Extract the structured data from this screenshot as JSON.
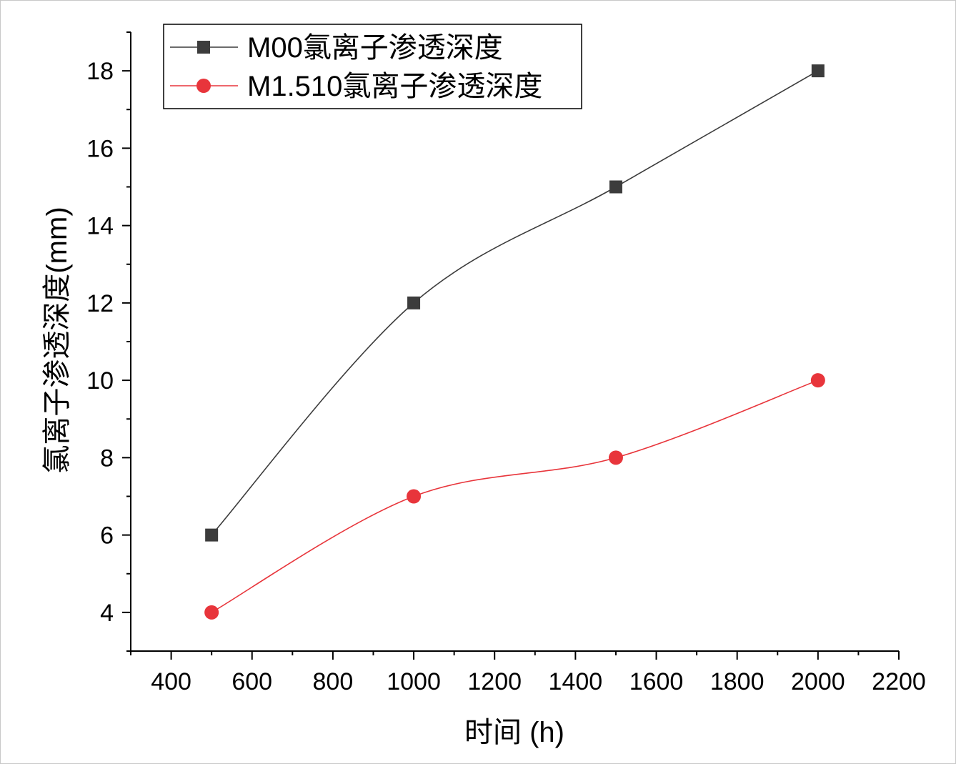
{
  "chart_data": {
    "type": "line",
    "xlabel": "时间 (h)",
    "ylabel": "氯离子渗透深度(mm)",
    "xlim": [
      300,
      2200
    ],
    "ylim": [
      3,
      19
    ],
    "x_ticks": [
      400,
      600,
      800,
      1000,
      1200,
      1400,
      1600,
      1800,
      2000,
      2200
    ],
    "y_ticks": [
      4,
      6,
      8,
      10,
      12,
      14,
      16,
      18
    ],
    "grid": false,
    "legend_position": "top-left",
    "x": [
      500,
      1000,
      1500,
      2000
    ],
    "series": [
      {
        "name": "M00氯离子渗透深度",
        "values": [
          6,
          12,
          15,
          18
        ],
        "color": "#3c3c3c",
        "marker": "square"
      },
      {
        "name": "M1.510氯离子渗透深度",
        "values": [
          4,
          7,
          8,
          10
        ],
        "color": "#e8353b",
        "marker": "circle"
      }
    ]
  }
}
